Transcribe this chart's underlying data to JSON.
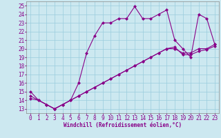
{
  "xlabel": "Windchill (Refroidissement éolien,°C)",
  "bg_color": "#cce8f0",
  "line_color": "#880088",
  "grid_color": "#99ccdd",
  "x_values": [
    0,
    1,
    2,
    3,
    4,
    5,
    6,
    7,
    8,
    9,
    10,
    11,
    12,
    13,
    14,
    15,
    16,
    17,
    18,
    19,
    20,
    21,
    22,
    23
  ],
  "series1_y": [
    15,
    14,
    13.5,
    13,
    13.5,
    14,
    16,
    19.5,
    21.5,
    23,
    23,
    23.5,
    23.5,
    24.9,
    23.5,
    23.5,
    24,
    24.5,
    21,
    20,
    19,
    24,
    23.5,
    20.5
  ],
  "series2_y": [
    14.5,
    14,
    13.5,
    13,
    13.5,
    14,
    14.5,
    15,
    15.5,
    16,
    16.5,
    17,
    17.5,
    18,
    18.5,
    19,
    19.5,
    20,
    20,
    19.5,
    19.5,
    20,
    20,
    20.5
  ],
  "series3_y": [
    14.2,
    14,
    13.5,
    13,
    13.5,
    14,
    14.5,
    15,
    15.5,
    16,
    16.5,
    17,
    17.5,
    18,
    18.5,
    19,
    19.5,
    20,
    20.2,
    19.3,
    19.3,
    19.7,
    19.9,
    20.3
  ],
  "ylim_min": 13,
  "ylim_max": 25,
  "xlim_min": 0,
  "xlim_max": 23,
  "yticks": [
    13,
    14,
    15,
    16,
    17,
    18,
    19,
    20,
    21,
    22,
    23,
    24,
    25
  ],
  "xticks": [
    0,
    1,
    2,
    3,
    4,
    5,
    6,
    7,
    8,
    9,
    10,
    11,
    12,
    13,
    14,
    15,
    16,
    17,
    18,
    19,
    20,
    21,
    22,
    23
  ],
  "marker": "D",
  "markersize": 2.0,
  "linewidth": 0.8,
  "xlabel_fontsize": 5.5,
  "tick_fontsize": 5.5,
  "label_color": "#880088",
  "fig_width": 3.2,
  "fig_height": 2.0,
  "dpi": 100
}
